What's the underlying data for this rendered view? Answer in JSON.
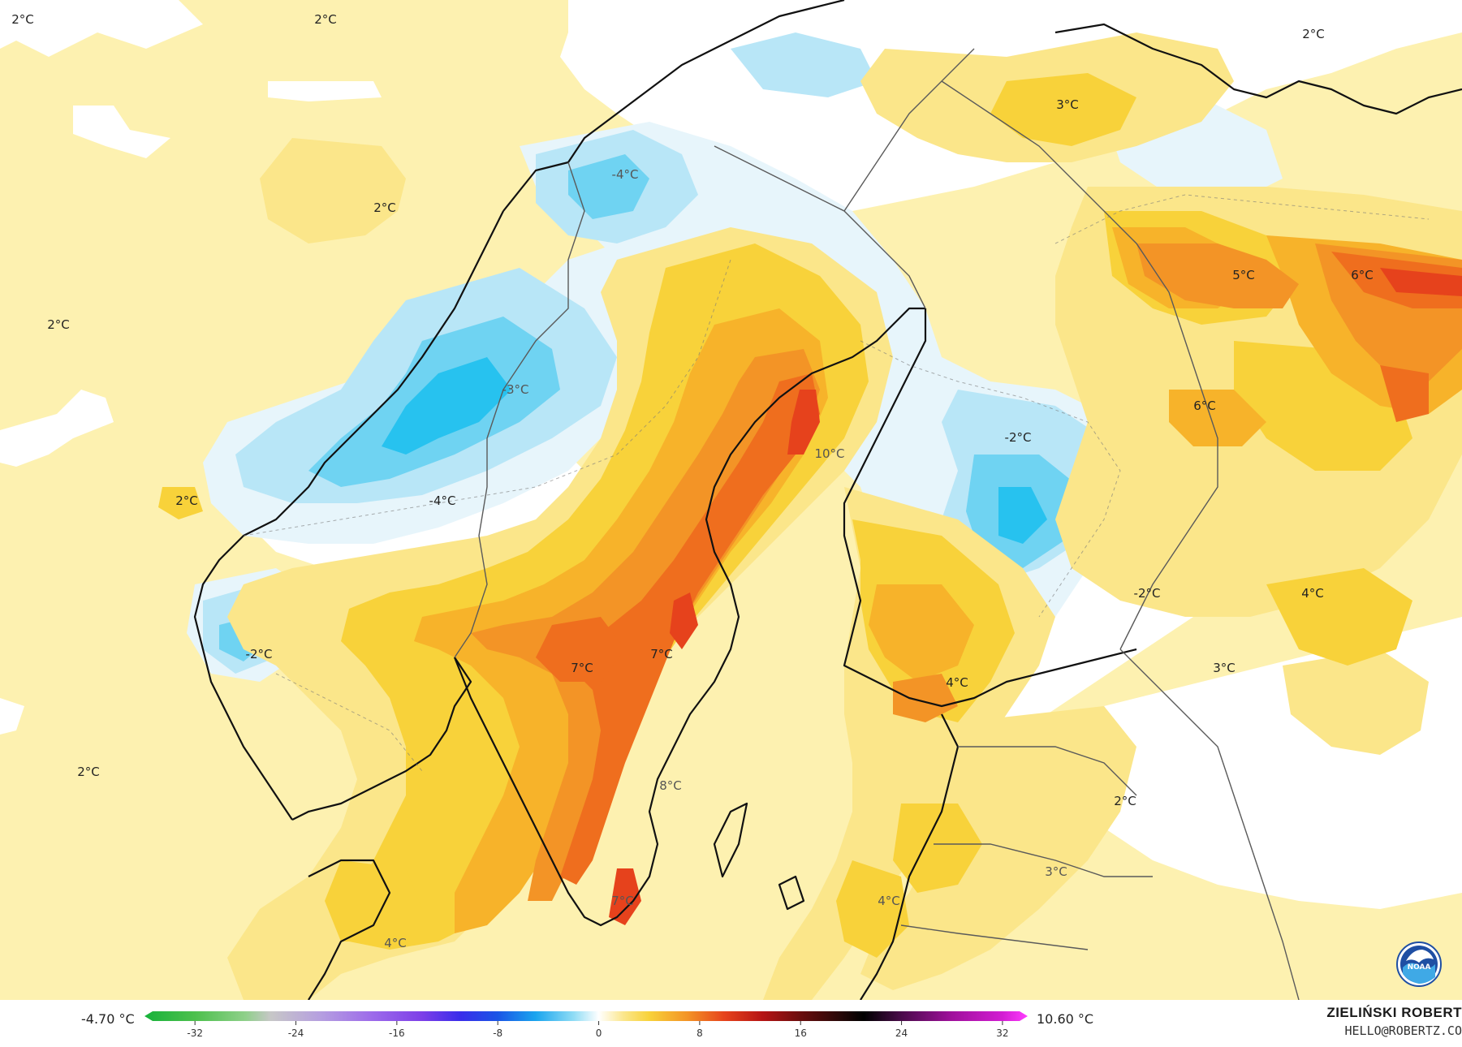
{
  "map": {
    "temperature_labels": [
      {
        "text": "2°C",
        "tone": "dark"
      },
      {
        "text": "2°C",
        "tone": "dark"
      },
      {
        "text": "2°C",
        "tone": "dark"
      },
      {
        "text": "2°C",
        "tone": "dark"
      },
      {
        "text": "2°C",
        "tone": "dark"
      },
      {
        "text": "2°C",
        "tone": "dark"
      },
      {
        "text": "2°C",
        "tone": "dark"
      },
      {
        "text": "2°C",
        "tone": "dark"
      },
      {
        "text": "3°C",
        "tone": "dark"
      },
      {
        "text": "5°C",
        "tone": "dark"
      },
      {
        "text": "6°C",
        "tone": "dark"
      },
      {
        "text": "6°C",
        "tone": "dark"
      },
      {
        "text": "-2°C",
        "tone": "dark"
      },
      {
        "text": "10°C",
        "tone": "light"
      },
      {
        "text": "-3°C",
        "tone": "light"
      },
      {
        "text": "-4°C",
        "tone": "dark"
      },
      {
        "text": "-2°C",
        "tone": "dark"
      },
      {
        "text": "-2°C",
        "tone": "dark"
      },
      {
        "text": "7°C",
        "tone": "dark"
      },
      {
        "text": "7°C",
        "tone": "dark"
      },
      {
        "text": "4°C",
        "tone": "dark"
      },
      {
        "text": "3°C",
        "tone": "dark"
      },
      {
        "text": "4°C",
        "tone": "dark"
      },
      {
        "text": "8°C",
        "tone": "light"
      },
      {
        "text": "7°C",
        "tone": "light"
      },
      {
        "text": "3°C",
        "tone": "light"
      },
      {
        "text": "4°C",
        "tone": "light"
      },
      {
        "text": "4°C",
        "tone": "light"
      },
      {
        "text": "-4°C",
        "tone": "light"
      }
    ],
    "colors": {
      "ocean_base": "#fdf1b0",
      "pale_yellow": "#fbe68a",
      "yellow": "#f8d23a",
      "orange_light": "#f7b32a",
      "orange": "#f39426",
      "orange_dark": "#ef6e1e",
      "red": "#e6421c",
      "white_zone": "#ffffff",
      "pale_blue": "#e7f5fb",
      "light_blue": "#b8e6f7",
      "blue": "#6fd3f2",
      "deep_blue": "#27c2ef",
      "coastline": "#111111",
      "border": "#5a5a5a"
    }
  },
  "legend": {
    "min_value": "-4.70 °C",
    "max_value": "10.60 °C",
    "ticks": [
      "-32",
      "-24",
      "-16",
      "-8",
      "0",
      "8",
      "16",
      "24",
      "32"
    ],
    "scale_range": [
      -36,
      34
    ],
    "gradient_stops": [
      {
        "v": -36,
        "color": "#17b23a"
      },
      {
        "v": -32,
        "color": "#4dc04d"
      },
      {
        "v": -28,
        "color": "#8fd08a"
      },
      {
        "v": -26,
        "color": "#c7c7c7"
      },
      {
        "v": -22,
        "color": "#b59ee0"
      },
      {
        "v": -18,
        "color": "#9d6bea"
      },
      {
        "v": -14,
        "color": "#7d3fe8"
      },
      {
        "v": -11,
        "color": "#3a2dea"
      },
      {
        "v": -8,
        "color": "#1a55e6"
      },
      {
        "v": -5,
        "color": "#1aa5ee"
      },
      {
        "v": -2,
        "color": "#8fdcf5"
      },
      {
        "v": 0,
        "color": "#ffffff"
      },
      {
        "v": 2,
        "color": "#fbe68a"
      },
      {
        "v": 4,
        "color": "#f8d23a"
      },
      {
        "v": 7,
        "color": "#f39426"
      },
      {
        "v": 10,
        "color": "#e6421c"
      },
      {
        "v": 13,
        "color": "#b51414"
      },
      {
        "v": 16,
        "color": "#6a0d0d"
      },
      {
        "v": 19,
        "color": "#2b0808"
      },
      {
        "v": 21,
        "color": "#000000"
      },
      {
        "v": 24,
        "color": "#4a0b4a"
      },
      {
        "v": 28,
        "color": "#a0109c"
      },
      {
        "v": 32,
        "color": "#d21ed2"
      },
      {
        "v": 34,
        "color": "#ff3cff"
      }
    ]
  },
  "credit": {
    "name": "ZIELIŃSKI ROBERT",
    "email": "HELLO@ROBERTZ.CO"
  },
  "logo": {
    "text": "NOAA",
    "icon": "noaa-logo-icon"
  }
}
